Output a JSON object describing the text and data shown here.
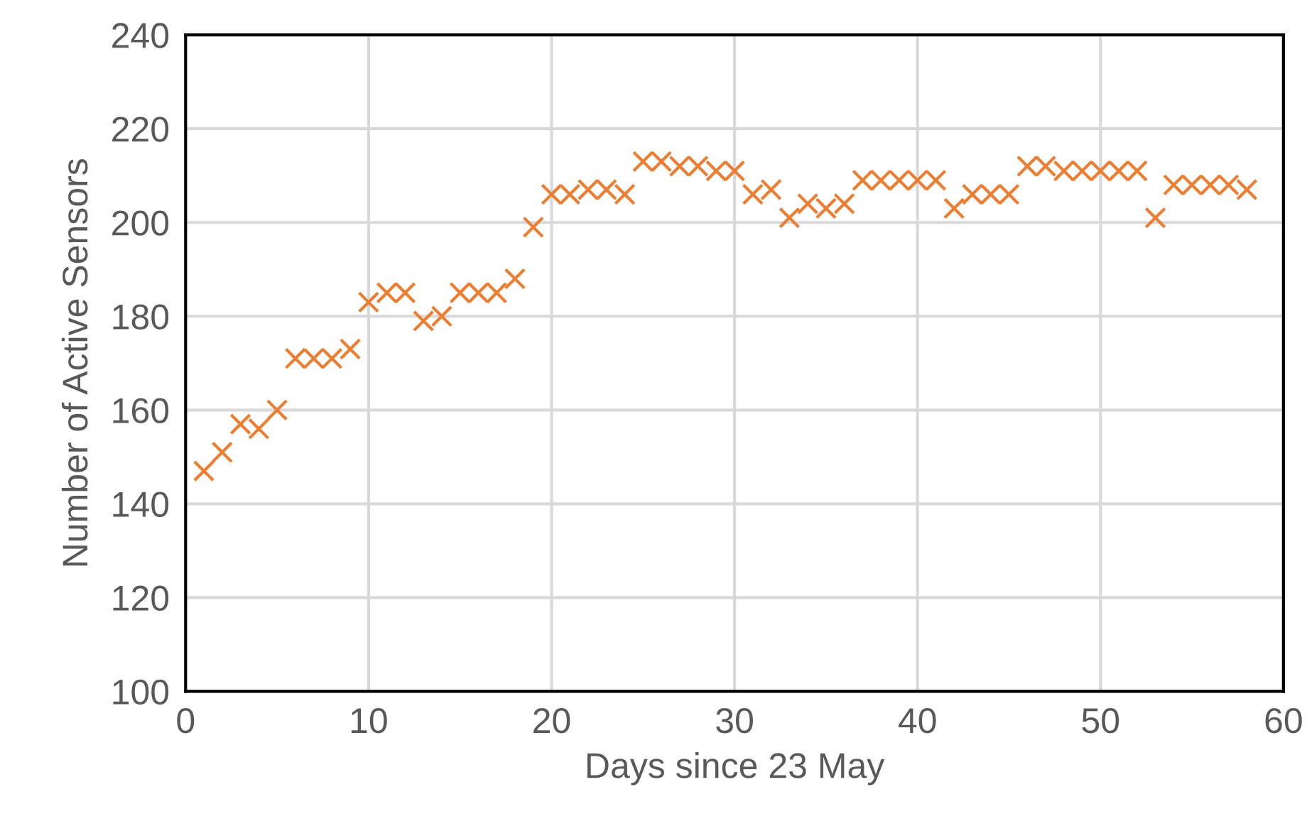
{
  "chart_data": {
    "type": "scatter",
    "xlabel": "Days since 23 May",
    "ylabel": "Number of Active Sensors",
    "x": [
      1,
      2,
      3,
      4,
      5,
      6,
      7,
      8,
      9,
      10,
      11,
      12,
      13,
      14,
      15,
      16,
      17,
      18,
      19,
      20,
      21,
      22,
      23,
      24,
      25,
      26,
      27,
      28,
      29,
      30,
      31,
      32,
      33,
      34,
      35,
      36,
      37,
      38,
      39,
      40,
      41,
      42,
      43,
      44,
      45,
      46,
      47,
      48,
      49,
      50,
      51,
      52,
      53,
      54,
      55,
      56,
      57,
      58
    ],
    "series": [
      {
        "color": "#ed7d31",
        "values": [
          147,
          151,
          157,
          156,
          160,
          171,
          171,
          171,
          173,
          183,
          185,
          185,
          179,
          180,
          185,
          185,
          185,
          188,
          199,
          206,
          206,
          207,
          207,
          206,
          213,
          213,
          212,
          212,
          211,
          211,
          206,
          207,
          201,
          204,
          203,
          204,
          209,
          209,
          209,
          209,
          209,
          203,
          206,
          206,
          206,
          212,
          212,
          211,
          211,
          211,
          211,
          211,
          201,
          208,
          208,
          208,
          208,
          207
        ]
      }
    ],
    "xlim": [
      0,
      60
    ],
    "xticks": [
      0,
      10,
      20,
      30,
      40,
      50,
      60
    ],
    "ylim": [
      100,
      240
    ],
    "yticks": [
      100,
      120,
      140,
      160,
      180,
      200,
      220,
      240
    ],
    "grid": true,
    "marker": "cross"
  }
}
